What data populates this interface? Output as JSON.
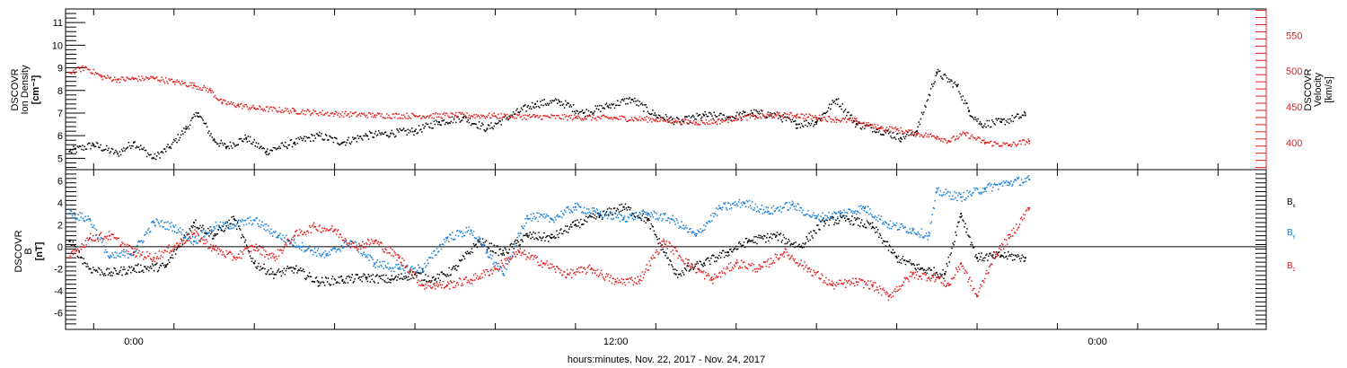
{
  "figure": {
    "xlabel": "hours:minutes, Nov. 22, 2017 - Nov. 24, 2017",
    "x_ticks": [
      "0:00",
      "12:00",
      "0:00"
    ]
  },
  "colors": {
    "black": "#000000",
    "red": "#e02020",
    "blue": "#1a7fd6"
  },
  "chart_data": [
    {
      "type": "scatter",
      "panel": "top",
      "ylabel_left": [
        "DSCOVR",
        "Ion Density",
        "[cm⁻³]"
      ],
      "ylabel_right": [
        "DSCOVR",
        "Velocity",
        "[km/s]"
      ],
      "ylim_left": [
        4.5,
        11.6
      ],
      "ylim_right": [
        362,
        587
      ],
      "yticks_left": [
        5,
        6,
        7,
        8,
        9,
        10,
        11
      ],
      "yticks_right": [
        400,
        450,
        500,
        550
      ],
      "xlim_hours": [
        -1.7,
        28.2
      ],
      "series": [
        {
          "color": "black",
          "axis": "left",
          "x": [
            -1.6,
            -1.0,
            -0.4,
            0.0,
            0.5,
            0.9,
            1.3,
            1.6,
            2.0,
            2.3,
            2.8,
            3.3,
            4.0,
            4.6,
            5.2,
            5.8,
            6.4,
            7.0,
            7.6,
            8.2,
            8.8,
            9.4,
            10.0,
            10.6,
            11.2,
            11.8,
            12.4,
            13.0,
            13.6,
            14.2,
            14.8,
            15.4,
            16.0,
            16.5,
            17.0,
            17.5,
            18.0,
            18.5,
            19.1,
            19.5,
            20.0,
            20.5,
            20.8,
            21.1,
            21.6,
            22.2
          ],
          "y": [
            5.3,
            5.6,
            5.2,
            5.7,
            5.0,
            5.5,
            6.3,
            7.0,
            5.8,
            5.5,
            5.9,
            5.3,
            5.7,
            6.0,
            5.7,
            6.0,
            6.1,
            6.2,
            6.6,
            6.8,
            6.3,
            6.9,
            7.4,
            7.5,
            7.0,
            7.3,
            7.6,
            6.9,
            6.6,
            6.9,
            6.8,
            7.0,
            6.9,
            6.5,
            6.6,
            7.6,
            6.5,
            6.3,
            5.9,
            6.2,
            8.8,
            8.2,
            7.1,
            6.5,
            6.6,
            6.9
          ]
        },
        {
          "color": "red",
          "axis": "right",
          "x": [
            -1.6,
            -1.2,
            -0.8,
            -0.4,
            0.0,
            0.5,
            1.0,
            1.5,
            1.9,
            2.2,
            2.6,
            3.0,
            4.0,
            5.0,
            6.0,
            7.0,
            8.0,
            9.0,
            10.0,
            11.0,
            12.0,
            13.0,
            13.5,
            14.0,
            14.5,
            15.0,
            15.5,
            16.0,
            16.5,
            17.0,
            17.5,
            18.0,
            18.3,
            18.6,
            19.0,
            19.5,
            20.0,
            20.3,
            20.7,
            21.2,
            21.8,
            22.3
          ],
          "y": [
            498,
            505,
            492,
            488,
            489,
            490,
            485,
            480,
            473,
            456,
            452,
            448,
            444,
            440,
            438,
            437,
            438,
            437,
            436,
            435,
            434,
            432,
            430,
            428,
            429,
            434,
            436,
            438,
            438,
            435,
            432,
            430,
            424,
            420,
            418,
            412,
            408,
            402,
            412,
            400,
            396,
            402
          ]
        }
      ]
    },
    {
      "type": "scatter",
      "panel": "bottom",
      "ylabel_left": [
        "DSCOVR",
        "B",
        "[nT]"
      ],
      "ylim": [
        -7.5,
        7.0
      ],
      "yticks": [
        -6,
        -4,
        -2,
        0,
        2,
        4,
        6
      ],
      "xlim_hours": [
        -1.7,
        28.2
      ],
      "series": [
        {
          "name": "Bx",
          "color": "black",
          "x": [
            -1.6,
            -1.1,
            -0.6,
            0.0,
            0.8,
            1.5,
            2.0,
            2.5,
            3.0,
            3.5,
            4.0,
            4.6,
            5.2,
            5.8,
            6.4,
            7.0,
            7.5,
            8.0,
            8.6,
            9.2,
            9.8,
            10.4,
            11.0,
            11.6,
            12.2,
            12.8,
            13.5,
            14.2,
            14.8,
            15.3,
            16.0,
            16.6,
            17.2,
            17.8,
            18.4,
            19.0,
            19.6,
            20.2,
            20.6,
            21.0,
            21.6,
            22.2
          ],
          "y": [
            0.5,
            -2.0,
            -2.4,
            -2.0,
            -1.8,
            2.2,
            1.0,
            2.5,
            -1.5,
            -2.5,
            -2.0,
            -3.2,
            -3.0,
            -2.8,
            -3.0,
            -2.5,
            -3.0,
            -2.0,
            0.5,
            -0.6,
            1.0,
            0.8,
            2.0,
            2.8,
            3.6,
            2.4,
            -2.5,
            -1.5,
            -0.5,
            0.5,
            1.0,
            0.0,
            2.3,
            2.5,
            1.8,
            -1.0,
            -2.0,
            -2.5,
            3.0,
            -1.0,
            -0.8,
            -1.0
          ]
        },
        {
          "name": "By",
          "color": "blue",
          "x": [
            -1.6,
            -1.1,
            -0.6,
            0.0,
            0.5,
            1.0,
            1.5,
            2.0,
            2.5,
            3.0,
            3.6,
            4.2,
            4.8,
            5.4,
            6.0,
            6.6,
            7.2,
            7.8,
            8.4,
            8.8,
            9.2,
            9.8,
            10.4,
            11.0,
            11.6,
            12.2,
            12.8,
            13.4,
            14.0,
            14.6,
            15.2,
            15.8,
            16.4,
            17.0,
            17.6,
            18.2,
            18.8,
            19.4,
            19.8,
            20.0,
            20.6,
            21.2,
            21.8,
            22.3
          ],
          "y": [
            3.0,
            2.5,
            -1.0,
            -0.5,
            2.2,
            1.8,
            0.5,
            1.8,
            2.0,
            2.4,
            1.0,
            0.0,
            -0.8,
            0.5,
            -1.5,
            -2.0,
            -2.0,
            0.8,
            1.5,
            -0.5,
            -2.5,
            2.8,
            2.5,
            3.6,
            3.0,
            2.6,
            3.0,
            2.5,
            1.0,
            3.5,
            4.0,
            3.2,
            3.8,
            2.6,
            3.0,
            3.5,
            2.0,
            1.5,
            1.0,
            5.0,
            4.5,
            5.3,
            5.8,
            6.1
          ]
        },
        {
          "name": "Bz",
          "color": "red",
          "x": [
            -1.6,
            -1.1,
            -0.6,
            0.0,
            0.5,
            1.0,
            1.5,
            2.0,
            2.5,
            3.0,
            3.5,
            4.0,
            4.5,
            5.0,
            5.5,
            6.0,
            6.6,
            7.2,
            7.8,
            8.4,
            9.0,
            9.6,
            10.2,
            10.8,
            11.4,
            12.0,
            12.6,
            13.2,
            13.8,
            14.4,
            15.0,
            15.6,
            16.2,
            16.8,
            17.4,
            18.0,
            18.4,
            18.8,
            19.4,
            20.0,
            20.3,
            20.6,
            21.0,
            21.4,
            21.8,
            22.3
          ],
          "y": [
            -1.0,
            0.8,
            1.0,
            -0.5,
            -1.0,
            0.0,
            1.2,
            -0.2,
            -1.0,
            0.0,
            -1.0,
            1.0,
            1.8,
            1.5,
            0.0,
            0.5,
            -1.0,
            -3.5,
            -3.5,
            -3.0,
            -2.0,
            -0.5,
            -1.5,
            -2.5,
            -2.0,
            -3.2,
            -3.0,
            0.5,
            -1.5,
            -3.0,
            -1.5,
            -2.0,
            -0.5,
            -2.0,
            -3.5,
            -3.2,
            -3.5,
            -4.5,
            -2.5,
            -2.8,
            -3.5,
            -1.5,
            -4.5,
            -1.0,
            0.8,
            3.5
          ]
        }
      ]
    }
  ]
}
